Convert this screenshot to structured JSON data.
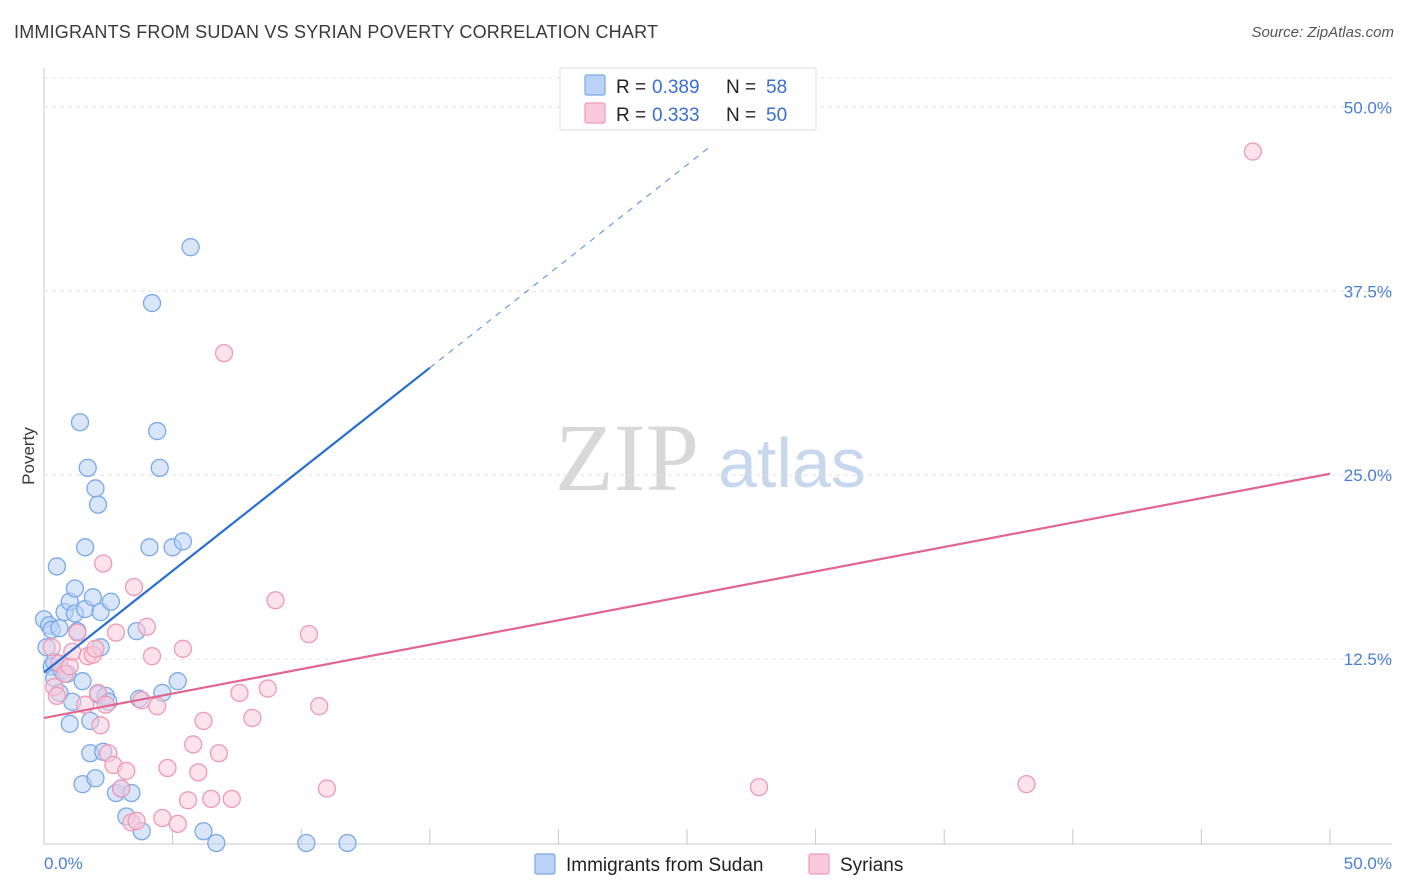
{
  "chart_data": {
    "type": "scatter",
    "title": "IMMIGRANTS FROM SUDAN VS SYRIAN POVERTY CORRELATION CHART",
    "source": "Source: ZipAtlas.com",
    "ylabel": "Poverty",
    "xlim": [
      0,
      50
    ],
    "ylim": [
      0,
      52
    ],
    "x_tick_labels": [
      "0.0%",
      "50.0%"
    ],
    "y_ticks": [
      12.5,
      25.0,
      37.5,
      50.0
    ],
    "y_tick_labels": [
      "12.5%",
      "25.0%",
      "37.5%",
      "50.0%"
    ],
    "grid": true,
    "legend": {
      "r_label": "R =",
      "n_label": "N =",
      "entries": [
        {
          "r": "0.389",
          "n": "58"
        },
        {
          "r": "0.333",
          "n": "50"
        }
      ]
    },
    "watermark": {
      "zip": "ZIP",
      "atlas": "atlas"
    },
    "series": [
      {
        "name": "Immigrants from Sudan",
        "color": "#7aa8e8",
        "fill": "#b9d2f5",
        "line_color": "#2a6fd0",
        "trend": {
          "x0": 0,
          "y0": 11.6,
          "x1": 15,
          "y1": 32.3,
          "dash_to_x": 25.9
        },
        "x": [
          0.0,
          0.1,
          0.2,
          0.3,
          0.3,
          0.4,
          0.5,
          0.6,
          0.6,
          0.7,
          0.8,
          0.9,
          1.0,
          1.0,
          1.1,
          1.2,
          1.2,
          1.3,
          1.4,
          1.5,
          1.5,
          1.6,
          1.6,
          1.7,
          1.8,
          1.8,
          1.9,
          2.0,
          2.0,
          2.1,
          2.1,
          2.2,
          2.2,
          2.3,
          2.4,
          2.5,
          2.6,
          2.8,
          3.0,
          3.2,
          3.4,
          3.6,
          3.7,
          3.8,
          4.1,
          4.2,
          4.4,
          4.5,
          4.6,
          5.0,
          5.2,
          5.4,
          5.7,
          6.2,
          6.7,
          10.2,
          11.8,
          0.4
        ],
        "y": [
          15.2,
          13.3,
          14.8,
          12.0,
          14.5,
          11.2,
          18.8,
          10.2,
          14.6,
          11.7,
          15.7,
          11.5,
          16.4,
          8.1,
          9.6,
          15.6,
          17.3,
          14.4,
          28.6,
          11.0,
          4.0,
          15.9,
          20.1,
          25.5,
          6.1,
          8.3,
          16.7,
          24.1,
          4.4,
          23.0,
          10.1,
          15.7,
          13.3,
          6.2,
          10.0,
          9.6,
          16.4,
          3.4,
          3.7,
          1.8,
          3.4,
          14.4,
          9.8,
          0.8,
          20.1,
          36.7,
          28.0,
          25.5,
          10.2,
          20.1,
          11.0,
          20.5,
          40.5,
          0.8,
          0.0,
          0.0,
          0.0,
          12.3
        ]
      },
      {
        "name": "Syrians",
        "color": "#ee9ab5",
        "fill": "#f8cadb",
        "line_color": "#e0658f",
        "trend": {
          "x0": 0,
          "y0": 8.5,
          "x1": 50,
          "y1": 25.1
        },
        "x": [
          0.3,
          0.4,
          0.5,
          0.6,
          0.8,
          1.0,
          1.1,
          1.3,
          1.6,
          1.7,
          1.9,
          2.0,
          2.1,
          2.2,
          2.3,
          2.4,
          2.5,
          2.7,
          2.8,
          3.0,
          3.2,
          3.4,
          3.5,
          3.6,
          3.8,
          4.0,
          4.2,
          4.4,
          4.6,
          4.8,
          5.2,
          5.4,
          5.6,
          5.8,
          6.0,
          6.2,
          6.5,
          6.8,
          7.0,
          7.3,
          7.6,
          8.1,
          8.7,
          9.0,
          10.3,
          10.7,
          11.0,
          27.8,
          38.2,
          47.0
        ],
        "y": [
          13.3,
          10.6,
          10.0,
          12.2,
          11.5,
          12.0,
          13.0,
          14.3,
          9.4,
          12.7,
          12.8,
          13.2,
          10.2,
          8.0,
          19.0,
          9.4,
          6.1,
          5.3,
          14.3,
          3.7,
          4.9,
          1.4,
          17.4,
          1.5,
          9.7,
          14.7,
          12.7,
          9.3,
          1.7,
          5.1,
          1.3,
          13.2,
          2.9,
          6.7,
          4.8,
          8.3,
          3.0,
          6.1,
          33.3,
          3.0,
          10.2,
          8.5,
          10.5,
          16.5,
          14.2,
          9.3,
          3.7,
          3.8,
          4.0,
          47.0
        ]
      }
    ]
  }
}
